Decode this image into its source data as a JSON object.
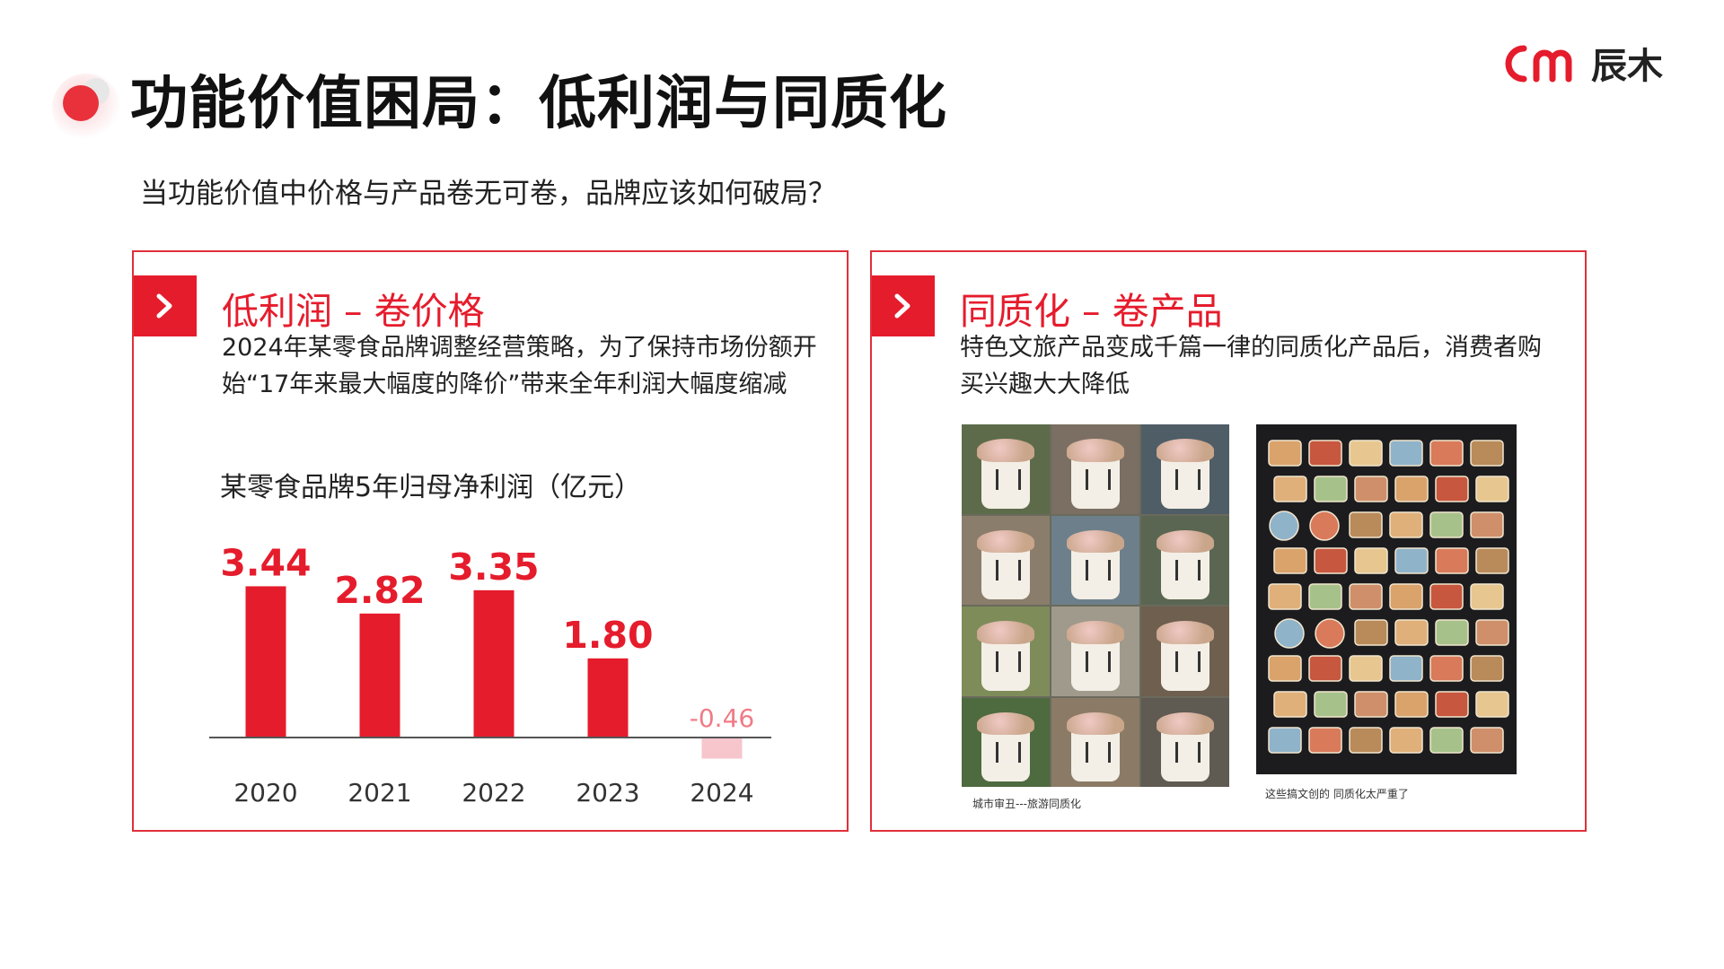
{
  "header": {
    "title": "功能价值困局：低利润与同质化",
    "subtitle": "当功能价值中价格与产品卷无可卷，品牌应该如何破局？",
    "brand_name": "辰木"
  },
  "left_panel": {
    "heading": "低利润 – 卷价格",
    "body": "2024年某零食品牌调整经营策略，为了保持市场份额开始“17年来最大幅度的降价”带来全年利润大幅度缩减"
  },
  "right_panel": {
    "heading": "同质化 – 卷产品",
    "body": "特色文旅产品变成千篇一律的同质化产品后，消费者购买兴趣大大降低",
    "photo1_caption": "城市审丑---旅游同质化",
    "photo2_caption": "这些搞文创的 同质化太严重了"
  },
  "colors": {
    "accent": "#e51c2c",
    "negative_bar": "#f6c6cc",
    "negative_label": "#f07b86"
  },
  "chart_data": {
    "type": "bar",
    "title": "某零食品牌5年归母净利润（亿元）",
    "categories": [
      "2020",
      "2021",
      "2022",
      "2023",
      "2024"
    ],
    "values": [
      3.44,
      2.82,
      3.35,
      1.8,
      -0.46
    ],
    "labels": [
      "3.44",
      "2.82",
      "3.35",
      "1.80",
      "-0.46"
    ],
    "xlabel": "",
    "ylabel": "",
    "ylim": [
      -0.6,
      3.6
    ],
    "grid": false,
    "legend": "none"
  }
}
